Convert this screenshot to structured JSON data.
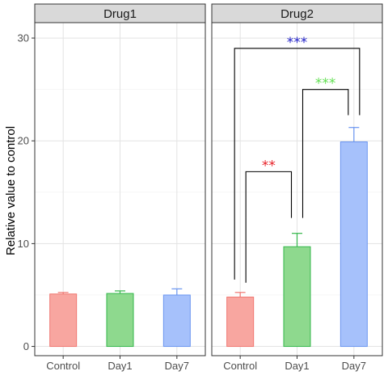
{
  "chart_data": {
    "type": "bar",
    "ylabel": "Relative value to control",
    "ylim": [
      -0.9,
      31.5
    ],
    "y_ticks": [
      0,
      10,
      20,
      30
    ],
    "categories": [
      "Control",
      "Day1",
      "Day7"
    ],
    "colors": {
      "Control": {
        "fill": "#f8a6a0",
        "stroke": "#f07670"
      },
      "Day1": {
        "fill": "#8ed98e",
        "stroke": "#33b74a"
      },
      "Day7": {
        "fill": "#a6c1fb",
        "stroke": "#6a95f0"
      }
    },
    "grid": true,
    "legend": "none",
    "panels": [
      {
        "name": "Drug1",
        "values": [
          5.1,
          5.15,
          5.0
        ],
        "errors": [
          0.15,
          0.25,
          0.6
        ],
        "comparisons": []
      },
      {
        "name": "Drug2",
        "values": [
          4.8,
          9.7,
          19.9
        ],
        "errors": [
          0.45,
          1.3,
          1.4
        ],
        "comparisons": [
          {
            "from": "Control",
            "to": "Day1",
            "label": "**",
            "color": "#e8232a",
            "from_y": 6.2,
            "to_y": 12.5,
            "bracket_y": 17.0
          },
          {
            "from": "Day1",
            "to": "Day7",
            "label": "***",
            "color": "#63e053",
            "from_y": 12.5,
            "to_y": 22.5,
            "bracket_y": 25.0
          },
          {
            "from": "Control",
            "to": "Day7",
            "label": "***",
            "color": "#2222c8",
            "from_y": 6.5,
            "to_y": 22.5,
            "bracket_y": 29.0
          }
        ]
      }
    ]
  }
}
